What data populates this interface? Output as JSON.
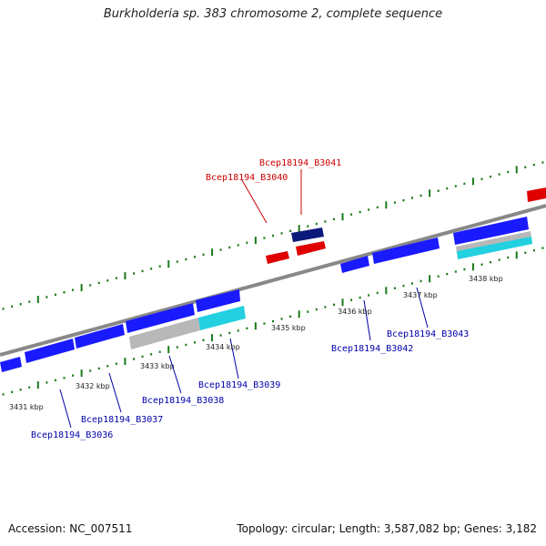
{
  "title": "Burkholderia sp. 383 chromosome 2, complete sequence",
  "footer": {
    "accession": "Accession: NC_007511",
    "summary": "Topology: circular; Length: 3,587,082 bp; Genes: 3,182"
  },
  "colors": {
    "backbone": "#8a8a8a",
    "forward_gene": "#e00000",
    "forward_gene_dark": "#0a1a7a",
    "reverse_gene": "#1a1aff",
    "rna_gray": "#b8b8b8",
    "rna_cyan": "#22d0e0",
    "tick": "#1a7a1a",
    "label_forward": "#cc0000",
    "label_reverse": "#0000aa"
  },
  "scale_ticks": [
    "3431 kbp",
    "3432 kbp",
    "3433 kbp",
    "3434 kbp",
    "3435 kbp",
    "3436 kbp",
    "3437 kbp",
    "3438 kbp"
  ],
  "labels": {
    "forward": [
      "Bcep18194_B3040",
      "Bcep18194_B3041"
    ],
    "reverse": [
      "Bcep18194_B3036",
      "Bcep18194_B3037",
      "Bcep18194_B3038",
      "Bcep18194_B3039",
      "Bcep18194_B3042",
      "Bcep18194_B3043"
    ]
  }
}
